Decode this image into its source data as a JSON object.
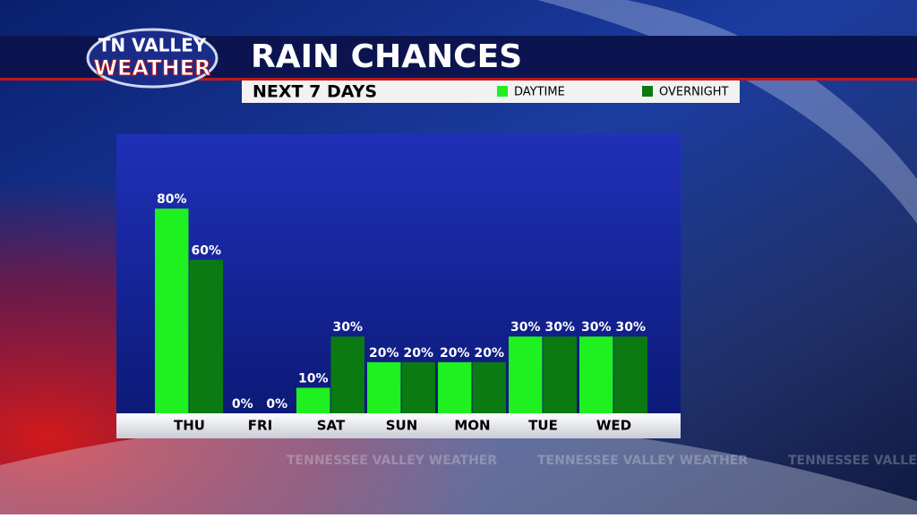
{
  "logo": {
    "line1": "TN VALLEY",
    "line2": "WEATHER"
  },
  "watermark": "TENNESSEE VALLEY WEATHER",
  "chart_data": {
    "type": "bar",
    "title": "RAIN CHANCES",
    "subtitle": "NEXT 7 DAYS",
    "categories": [
      "THU",
      "FRI",
      "SAT",
      "SUN",
      "MON",
      "TUE",
      "WED"
    ],
    "series": [
      {
        "name": "DAYTIME",
        "color": "#1ff01f",
        "values": [
          80,
          0,
          10,
          20,
          20,
          30,
          30
        ],
        "value_labels": [
          "80%",
          "0%",
          "10%",
          "20%",
          "20%",
          "30%",
          "30%"
        ]
      },
      {
        "name": "OVERNIGHT",
        "color": "#0b7a12",
        "values": [
          60,
          0,
          30,
          20,
          20,
          30,
          30
        ],
        "value_labels": [
          "60%",
          "0%",
          "30%",
          "20%",
          "20%",
          "30%",
          "30%"
        ]
      }
    ],
    "ylim": [
      0,
      100
    ]
  }
}
